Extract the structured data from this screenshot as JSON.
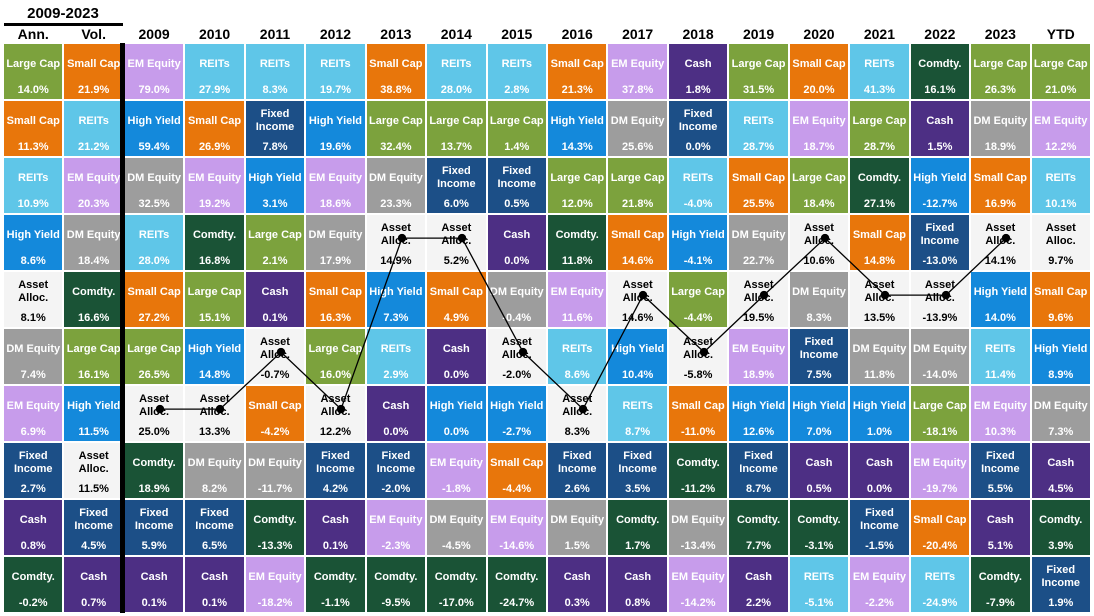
{
  "title": "2009-2023",
  "columns": [
    "Ann.",
    "Vol.",
    "2009",
    "2010",
    "2011",
    "2012",
    "2013",
    "2014",
    "2015",
    "2016",
    "2017",
    "2018",
    "2019",
    "2020",
    "2021",
    "2022",
    "2023",
    "YTD"
  ],
  "asset_colors": {
    "Large Cap": {
      "bg": "#7CA23D",
      "fg": "#ffffff"
    },
    "Small Cap": {
      "bg": "#E8760B",
      "fg": "#ffffff"
    },
    "REITs": {
      "bg": "#5FC6E8",
      "fg": "#ffffff"
    },
    "EM Equity": {
      "bg": "#C79CEB",
      "fg": "#ffffff"
    },
    "DM Equity": {
      "bg": "#9D9D9D",
      "fg": "#ffffff"
    },
    "High Yield": {
      "bg": "#1489DB",
      "fg": "#ffffff"
    },
    "Fixed Income": {
      "bg": "#1C4F87",
      "fg": "#ffffff"
    },
    "Cash": {
      "bg": "#4D2F84",
      "fg": "#ffffff"
    },
    "Comdty.": {
      "bg": "#1A5336",
      "fg": "#ffffff"
    },
    "Asset Alloc.": {
      "bg": "#F4F4F4",
      "fg": "#000000"
    }
  },
  "line_overlay": {
    "connects_asset": "Asset Alloc.",
    "from_column": "2009",
    "to_column": "2023",
    "color": "#000000"
  },
  "chart_data": {
    "type": "table",
    "title": "2009-2023",
    "columns": [
      "Ann.",
      "Vol.",
      "2009",
      "2010",
      "2011",
      "2012",
      "2013",
      "2014",
      "2015",
      "2016",
      "2017",
      "2018",
      "2019",
      "2020",
      "2021",
      "2022",
      "2023",
      "YTD"
    ],
    "rows": [
      [
        {
          "asset": "Large Cap",
          "value": "14.0%"
        },
        {
          "asset": "Small Cap",
          "value": "21.9%"
        },
        {
          "asset": "EM Equity",
          "value": "79.0%"
        },
        {
          "asset": "REITs",
          "value": "27.9%"
        },
        {
          "asset": "REITs",
          "value": "8.3%"
        },
        {
          "asset": "REITs",
          "value": "19.7%"
        },
        {
          "asset": "Small Cap",
          "value": "38.8%"
        },
        {
          "asset": "REITs",
          "value": "28.0%"
        },
        {
          "asset": "REITs",
          "value": "2.8%"
        },
        {
          "asset": "Small Cap",
          "value": "21.3%"
        },
        {
          "asset": "EM Equity",
          "value": "37.8%"
        },
        {
          "asset": "Cash",
          "value": "1.8%"
        },
        {
          "asset": "Large Cap",
          "value": "31.5%"
        },
        {
          "asset": "Small Cap",
          "value": "20.0%"
        },
        {
          "asset": "REITs",
          "value": "41.3%"
        },
        {
          "asset": "Comdty.",
          "value": "16.1%"
        },
        {
          "asset": "Large Cap",
          "value": "26.3%"
        },
        {
          "asset": "Large Cap",
          "value": "21.0%"
        }
      ],
      [
        {
          "asset": "Small Cap",
          "value": "11.3%"
        },
        {
          "asset": "REITs",
          "value": "21.2%"
        },
        {
          "asset": "High Yield",
          "value": "59.4%"
        },
        {
          "asset": "Small Cap",
          "value": "26.9%"
        },
        {
          "asset": "Fixed Income",
          "value": "7.8%"
        },
        {
          "asset": "High Yield",
          "value": "19.6%"
        },
        {
          "asset": "Large Cap",
          "value": "32.4%"
        },
        {
          "asset": "Large Cap",
          "value": "13.7%"
        },
        {
          "asset": "Large Cap",
          "value": "1.4%"
        },
        {
          "asset": "High Yield",
          "value": "14.3%"
        },
        {
          "asset": "DM Equity",
          "value": "25.6%"
        },
        {
          "asset": "Fixed Income",
          "value": "0.0%"
        },
        {
          "asset": "REITs",
          "value": "28.7%"
        },
        {
          "asset": "EM Equity",
          "value": "18.7%"
        },
        {
          "asset": "Large Cap",
          "value": "28.7%"
        },
        {
          "asset": "Cash",
          "value": "1.5%"
        },
        {
          "asset": "DM Equity",
          "value": "18.9%"
        },
        {
          "asset": "EM Equity",
          "value": "12.2%"
        }
      ],
      [
        {
          "asset": "REITs",
          "value": "10.9%"
        },
        {
          "asset": "EM Equity",
          "value": "20.3%"
        },
        {
          "asset": "DM Equity",
          "value": "32.5%"
        },
        {
          "asset": "EM Equity",
          "value": "19.2%"
        },
        {
          "asset": "High Yield",
          "value": "3.1%"
        },
        {
          "asset": "EM Equity",
          "value": "18.6%"
        },
        {
          "asset": "DM Equity",
          "value": "23.3%"
        },
        {
          "asset": "Fixed Income",
          "value": "6.0%"
        },
        {
          "asset": "Fixed Income",
          "value": "0.5%"
        },
        {
          "asset": "Large Cap",
          "value": "12.0%"
        },
        {
          "asset": "Large Cap",
          "value": "21.8%"
        },
        {
          "asset": "REITs",
          "value": "-4.0%"
        },
        {
          "asset": "Small Cap",
          "value": "25.5%"
        },
        {
          "asset": "Large Cap",
          "value": "18.4%"
        },
        {
          "asset": "Comdty.",
          "value": "27.1%"
        },
        {
          "asset": "High Yield",
          "value": "-12.7%"
        },
        {
          "asset": "Small Cap",
          "value": "16.9%"
        },
        {
          "asset": "REITs",
          "value": "10.1%"
        }
      ],
      [
        {
          "asset": "High Yield",
          "value": "8.6%"
        },
        {
          "asset": "DM Equity",
          "value": "18.4%"
        },
        {
          "asset": "REITs",
          "value": "28.0%"
        },
        {
          "asset": "Comdty.",
          "value": "16.8%"
        },
        {
          "asset": "Large Cap",
          "value": "2.1%"
        },
        {
          "asset": "DM Equity",
          "value": "17.9%"
        },
        {
          "asset": "Asset Alloc.",
          "value": "14.9%"
        },
        {
          "asset": "Asset Alloc.",
          "value": "5.2%"
        },
        {
          "asset": "Cash",
          "value": "0.0%"
        },
        {
          "asset": "Comdty.",
          "value": "11.8%"
        },
        {
          "asset": "Small Cap",
          "value": "14.6%"
        },
        {
          "asset": "High Yield",
          "value": "-4.1%"
        },
        {
          "asset": "DM Equity",
          "value": "22.7%"
        },
        {
          "asset": "Asset Alloc.",
          "value": "10.6%"
        },
        {
          "asset": "Small Cap",
          "value": "14.8%"
        },
        {
          "asset": "Fixed Income",
          "value": "-13.0%"
        },
        {
          "asset": "Asset Alloc.",
          "value": "14.1%"
        },
        {
          "asset": "Asset Alloc.",
          "value": "9.7%"
        }
      ],
      [
        {
          "asset": "Asset Alloc.",
          "value": "8.1%"
        },
        {
          "asset": "Comdty.",
          "value": "16.6%"
        },
        {
          "asset": "Small Cap",
          "value": "27.2%"
        },
        {
          "asset": "Large Cap",
          "value": "15.1%"
        },
        {
          "asset": "Cash",
          "value": "0.1%"
        },
        {
          "asset": "Small Cap",
          "value": "16.3%"
        },
        {
          "asset": "High Yield",
          "value": "7.3%"
        },
        {
          "asset": "Small Cap",
          "value": "4.9%"
        },
        {
          "asset": "DM Equity",
          "value": "-0.4%"
        },
        {
          "asset": "EM Equity",
          "value": "11.6%"
        },
        {
          "asset": "Asset Alloc.",
          "value": "14.6%"
        },
        {
          "asset": "Large Cap",
          "value": "-4.4%"
        },
        {
          "asset": "Asset Alloc.",
          "value": "19.5%"
        },
        {
          "asset": "DM Equity",
          "value": "8.3%"
        },
        {
          "asset": "Asset Alloc.",
          "value": "13.5%"
        },
        {
          "asset": "Asset Alloc.",
          "value": "-13.9%"
        },
        {
          "asset": "High Yield",
          "value": "14.0%"
        },
        {
          "asset": "Small Cap",
          "value": "9.6%"
        }
      ],
      [
        {
          "asset": "DM Equity",
          "value": "7.4%"
        },
        {
          "asset": "Large Cap",
          "value": "16.1%"
        },
        {
          "asset": "Large Cap",
          "value": "26.5%"
        },
        {
          "asset": "High Yield",
          "value": "14.8%"
        },
        {
          "asset": "Asset Alloc.",
          "value": "-0.7%"
        },
        {
          "asset": "Large Cap",
          "value": "16.0%"
        },
        {
          "asset": "REITs",
          "value": "2.9%"
        },
        {
          "asset": "Cash",
          "value": "0.0%"
        },
        {
          "asset": "Asset Alloc.",
          "value": "-2.0%"
        },
        {
          "asset": "REITs",
          "value": "8.6%"
        },
        {
          "asset": "High Yield",
          "value": "10.4%"
        },
        {
          "asset": "Asset Alloc.",
          "value": "-5.8%"
        },
        {
          "asset": "EM Equity",
          "value": "18.9%"
        },
        {
          "asset": "Fixed Income",
          "value": "7.5%"
        },
        {
          "asset": "DM Equity",
          "value": "11.8%"
        },
        {
          "asset": "DM Equity",
          "value": "-14.0%"
        },
        {
          "asset": "REITs",
          "value": "11.4%"
        },
        {
          "asset": "High Yield",
          "value": "8.9%"
        }
      ],
      [
        {
          "asset": "EM Equity",
          "value": "6.9%"
        },
        {
          "asset": "High Yield",
          "value": "11.5%"
        },
        {
          "asset": "Asset Alloc.",
          "value": "25.0%"
        },
        {
          "asset": "Asset Alloc.",
          "value": "13.3%"
        },
        {
          "asset": "Small Cap",
          "value": "-4.2%"
        },
        {
          "asset": "Asset Alloc.",
          "value": "12.2%"
        },
        {
          "asset": "Cash",
          "value": "0.0%"
        },
        {
          "asset": "High Yield",
          "value": "0.0%"
        },
        {
          "asset": "High Yield",
          "value": "-2.7%"
        },
        {
          "asset": "Asset Alloc.",
          "value": "8.3%"
        },
        {
          "asset": "REITs",
          "value": "8.7%"
        },
        {
          "asset": "Small Cap",
          "value": "-11.0%"
        },
        {
          "asset": "High Yield",
          "value": "12.6%"
        },
        {
          "asset": "High Yield",
          "value": "7.0%"
        },
        {
          "asset": "High Yield",
          "value": "1.0%"
        },
        {
          "asset": "Large Cap",
          "value": "-18.1%"
        },
        {
          "asset": "EM Equity",
          "value": "10.3%"
        },
        {
          "asset": "DM Equity",
          "value": "7.3%"
        }
      ],
      [
        {
          "asset": "Fixed Income",
          "value": "2.7%"
        },
        {
          "asset": "Asset Alloc.",
          "value": "11.5%"
        },
        {
          "asset": "Comdty.",
          "value": "18.9%"
        },
        {
          "asset": "DM Equity",
          "value": "8.2%"
        },
        {
          "asset": "DM Equity",
          "value": "-11.7%"
        },
        {
          "asset": "Fixed Income",
          "value": "4.2%"
        },
        {
          "asset": "Fixed Income",
          "value": "-2.0%"
        },
        {
          "asset": "EM Equity",
          "value": "-1.8%"
        },
        {
          "asset": "Small Cap",
          "value": "-4.4%"
        },
        {
          "asset": "Fixed Income",
          "value": "2.6%"
        },
        {
          "asset": "Fixed Income",
          "value": "3.5%"
        },
        {
          "asset": "Comdty.",
          "value": "-11.2%"
        },
        {
          "asset": "Fixed Income",
          "value": "8.7%"
        },
        {
          "asset": "Cash",
          "value": "0.5%"
        },
        {
          "asset": "Cash",
          "value": "0.0%"
        },
        {
          "asset": "EM Equity",
          "value": "-19.7%"
        },
        {
          "asset": "Fixed Income",
          "value": "5.5%"
        },
        {
          "asset": "Cash",
          "value": "4.5%"
        }
      ],
      [
        {
          "asset": "Cash",
          "value": "0.8%"
        },
        {
          "asset": "Fixed Income",
          "value": "4.5%"
        },
        {
          "asset": "Fixed Income",
          "value": "5.9%"
        },
        {
          "asset": "Fixed Income",
          "value": "6.5%"
        },
        {
          "asset": "Comdty.",
          "value": "-13.3%"
        },
        {
          "asset": "Cash",
          "value": "0.1%"
        },
        {
          "asset": "EM Equity",
          "value": "-2.3%"
        },
        {
          "asset": "DM Equity",
          "value": "-4.5%"
        },
        {
          "asset": "EM Equity",
          "value": "-14.6%"
        },
        {
          "asset": "DM Equity",
          "value": "1.5%"
        },
        {
          "asset": "Comdty.",
          "value": "1.7%"
        },
        {
          "asset": "DM Equity",
          "value": "-13.4%"
        },
        {
          "asset": "Comdty.",
          "value": "7.7%"
        },
        {
          "asset": "Comdty.",
          "value": "-3.1%"
        },
        {
          "asset": "Fixed Income",
          "value": "-1.5%"
        },
        {
          "asset": "Small Cap",
          "value": "-20.4%"
        },
        {
          "asset": "Cash",
          "value": "5.1%"
        },
        {
          "asset": "Comdty.",
          "value": "3.9%"
        }
      ],
      [
        {
          "asset": "Comdty.",
          "value": "-0.2%"
        },
        {
          "asset": "Cash",
          "value": "0.7%"
        },
        {
          "asset": "Cash",
          "value": "0.1%"
        },
        {
          "asset": "Cash",
          "value": "0.1%"
        },
        {
          "asset": "EM Equity",
          "value": "-18.2%"
        },
        {
          "asset": "Comdty.",
          "value": "-1.1%"
        },
        {
          "asset": "Comdty.",
          "value": "-9.5%"
        },
        {
          "asset": "Comdty.",
          "value": "-17.0%"
        },
        {
          "asset": "Comdty.",
          "value": "-24.7%"
        },
        {
          "asset": "Cash",
          "value": "0.3%"
        },
        {
          "asset": "Cash",
          "value": "0.8%"
        },
        {
          "asset": "EM Equity",
          "value": "-14.2%"
        },
        {
          "asset": "Cash",
          "value": "2.2%"
        },
        {
          "asset": "REITs",
          "value": "-5.1%"
        },
        {
          "asset": "EM Equity",
          "value": "-2.2%"
        },
        {
          "asset": "REITs",
          "value": "-24.9%"
        },
        {
          "asset": "Comdty.",
          "value": "-7.9%"
        },
        {
          "asset": "Fixed Income",
          "value": "1.9%"
        }
      ]
    ]
  }
}
